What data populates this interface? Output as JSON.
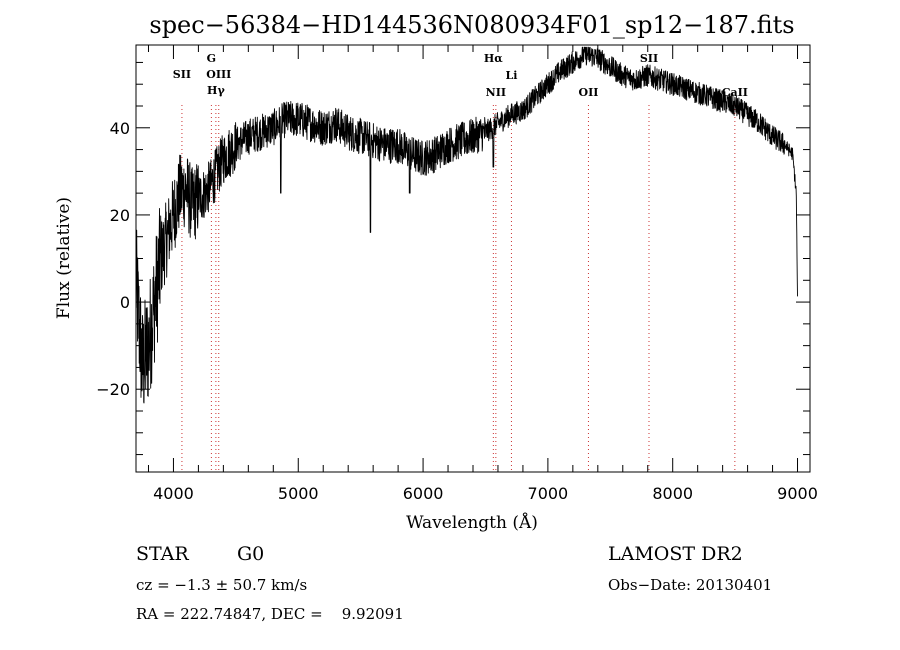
{
  "chart_data": {
    "type": "line",
    "title": "spec−56384−HD144536N080934F01_sp12−187.fits",
    "xlabel": "Wavelength (Å)",
    "ylabel": "Flux (relative)",
    "xlim": [
      3700,
      9100
    ],
    "ylim": [
      -39,
      59
    ],
    "grid": false,
    "x_ticks": [
      4000,
      5000,
      6000,
      7000,
      8000,
      9000
    ],
    "y_ticks": [
      -20,
      0,
      20,
      40
    ],
    "y_tick_labels": [
      "−20",
      "0",
      "20",
      "40"
    ],
    "series": [
      {
        "x": [
          3700,
          3750,
          3800,
          3850,
          3900,
          3950,
          4000,
          4050,
          4100,
          4150,
          4200,
          4250,
          4300,
          4350,
          4400,
          4500,
          4600,
          4700,
          4800,
          4900,
          5000,
          5100,
          5200,
          5300,
          5400,
          5500,
          5600,
          5700,
          5800,
          5900,
          6000,
          6100,
          6200,
          6300,
          6400,
          6500,
          6550,
          6600,
          6650,
          6700,
          6800,
          6900,
          7000,
          7100,
          7200,
          7300,
          7400,
          7500,
          7550,
          7600,
          7700,
          7800,
          7900,
          8000,
          8100,
          8200,
          8300,
          8400,
          8500,
          8600,
          8700,
          8800,
          8900,
          8960,
          8990,
          9000
        ],
        "y": [
          5,
          -15,
          -10,
          0,
          10,
          15,
          20,
          25,
          26,
          22,
          24,
          25,
          27,
          30,
          33,
          36,
          38,
          39,
          40,
          42,
          42,
          41,
          40,
          41,
          39,
          38,
          37,
          36,
          36,
          34,
          33,
          34,
          36,
          37,
          38,
          39,
          40,
          41,
          42,
          43,
          44,
          47,
          50,
          53,
          55,
          57,
          56,
          54,
          53,
          52,
          51,
          52,
          51,
          50,
          49,
          48,
          47,
          46,
          45,
          43,
          41,
          38,
          36,
          34,
          25,
          0
        ]
      }
    ],
    "spectral_lines": [
      {
        "label": "SII",
        "x": 4068
      },
      {
        "label": "G",
        "x": 4304
      },
      {
        "label": "OIII",
        "x": 4363
      },
      {
        "label": "Hγ",
        "x": 4340
      },
      {
        "label": "Hα",
        "x": 6563
      },
      {
        "label": "NII",
        "x": 6583
      },
      {
        "label": "Li",
        "x": 6708
      },
      {
        "label": "OII",
        "x": 7325
      },
      {
        "label": "SII",
        "x": 7810
      },
      {
        "label": "CaII",
        "x": 8498
      }
    ]
  },
  "info": {
    "object_class": "STAR",
    "subclass": "G0",
    "cz": "cz = −1.3 ± 50.7 km/s",
    "radec": "RA = 222.74847, DEC =    9.92091",
    "survey": "LAMOST DR2",
    "obs_date": "Obs−Date: 20130401"
  }
}
